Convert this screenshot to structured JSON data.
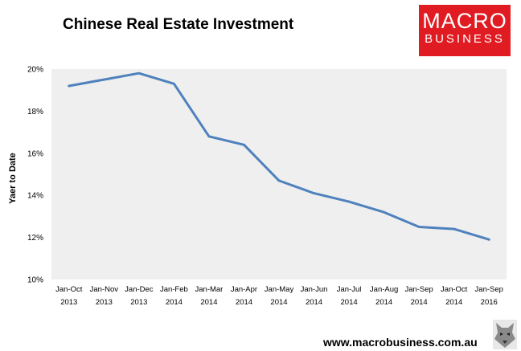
{
  "header": {
    "title": "Chinese Real Estate Investment",
    "logo_line1": "MACRO",
    "logo_line2": "BUSINESS"
  },
  "footer": {
    "url": "www.macrobusiness.com.au"
  },
  "colors": {
    "line": "#4f81bd",
    "plot_bg": "#efefef",
    "logo_bg": "#e01b22"
  },
  "chart_data": {
    "type": "line",
    "title": "Chinese Real Estate Investment",
    "xlabel": "",
    "ylabel": "Yaer to Date",
    "categories": [
      [
        "Jan-Oct",
        "2013"
      ],
      [
        "Jan-Nov",
        "2013"
      ],
      [
        "Jan-Dec",
        "2013"
      ],
      [
        "Jan-Feb",
        "2014"
      ],
      [
        "Jan-Mar",
        "2014"
      ],
      [
        "Jan-Apr",
        "2014"
      ],
      [
        "Jan-May",
        "2014"
      ],
      [
        "Jan-Jun",
        "2014"
      ],
      [
        "Jan-Jul",
        "2014"
      ],
      [
        "Jan-Aug",
        "2014"
      ],
      [
        "Jan-Sep",
        "2014"
      ],
      [
        "Jan-Oct",
        "2014"
      ],
      [
        "Jan-Sep",
        "2016"
      ]
    ],
    "series": [
      {
        "values": [
          19.2,
          19.5,
          19.8,
          19.3,
          16.8,
          16.4,
          14.7,
          14.1,
          13.7,
          13.2,
          12.5,
          12.4,
          11.9
        ]
      }
    ],
    "ylim": [
      10,
      20
    ],
    "yticks": [
      10,
      12,
      14,
      16,
      18,
      20
    ],
    "ytick_labels": [
      "10%",
      "12%",
      "14%",
      "16%",
      "18%",
      "20%"
    ],
    "grid": false,
    "legend": "none"
  }
}
